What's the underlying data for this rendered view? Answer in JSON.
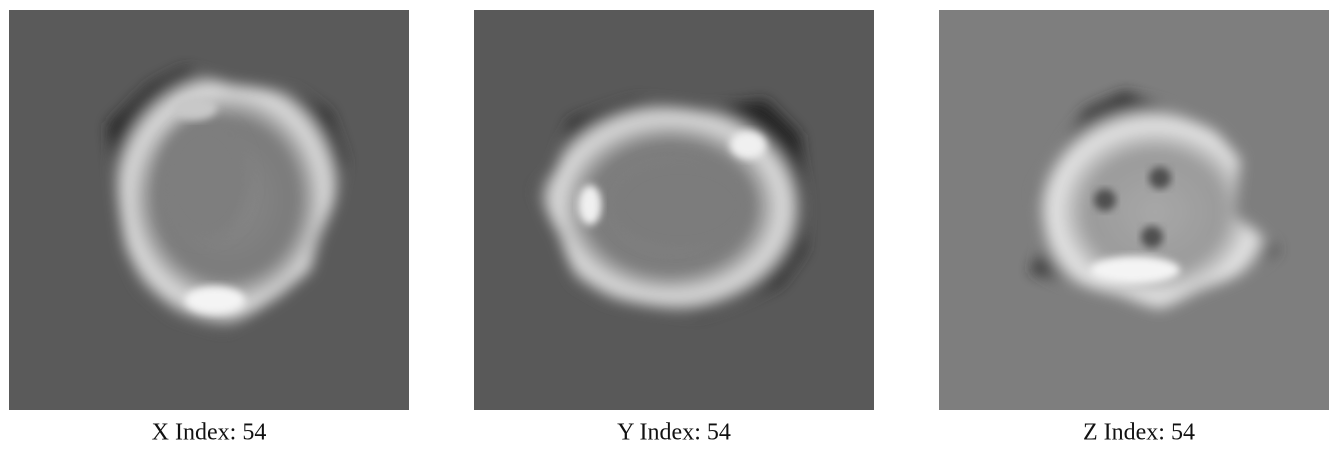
{
  "panels": [
    {
      "caption": "X Index: 54"
    },
    {
      "caption": "Y Index: 54"
    },
    {
      "caption": "Z Index: 54"
    }
  ]
}
